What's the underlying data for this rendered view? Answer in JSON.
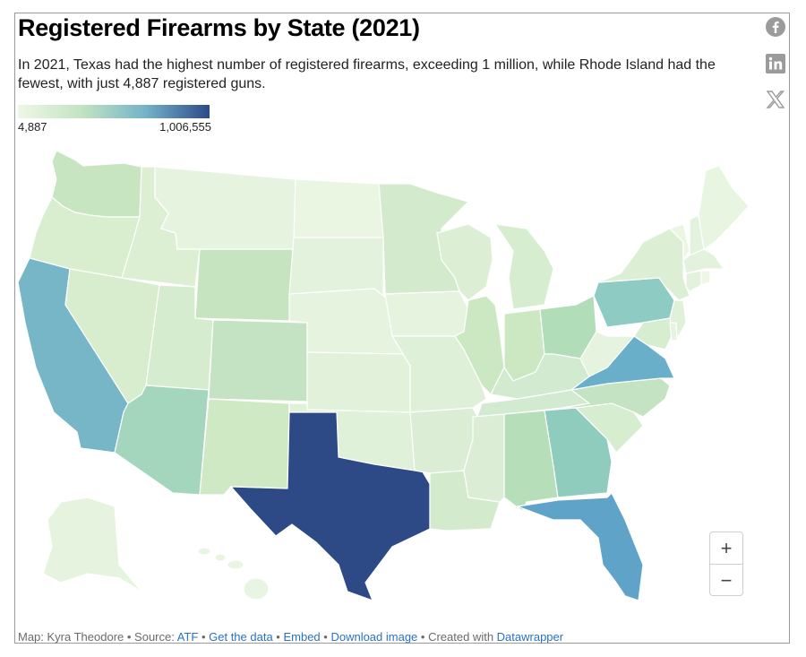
{
  "header": {
    "title": "Registered Firearms by State (2021)",
    "description": "In 2021, Texas had the highest number of registered firearms, exceeding 1 million, while Rhode Island had the fewest, with just 4,887 registered guns."
  },
  "legend": {
    "min_label": "4,887",
    "max_label": "1,006,555",
    "min": 4887,
    "max": 1006555,
    "colors": [
      "#eef7e6",
      "#c3e3c2",
      "#74b3c9",
      "#2d4a87"
    ]
  },
  "social": {
    "facebook_icon": "facebook-icon",
    "linkedin_icon": "linkedin-icon",
    "x_icon": "x-icon"
  },
  "map": {
    "state_colors": {
      "texas": "#2d4a87",
      "florida": "#5fa4c8",
      "california": "#77b6c7",
      "virginia": "#6aafca",
      "pennsylvania": "#8ecbc3",
      "georgia": "#90ccbd",
      "arizona": "#a3d6bd",
      "ohio": "#b2ddb9",
      "alabama": "#b6dfb9",
      "colorado": "#c3e3c2",
      "north_carolina": "#c3e3c2",
      "washington": "#c7e5c0",
      "wyoming": "#c5e4bf",
      "new_mexico": "#cfe9c5",
      "indiana": "#cce8c3",
      "illinois": "#cce8c3",
      "kentucky": "#d1ead0",
      "tennessee": "#d1ead0",
      "utah": "#d5ecce",
      "nevada": "#d7edcd",
      "oregon": "#d9eecf",
      "idaho": "#dcefd3",
      "montana": "#e6f4df",
      "north_dakota": "#eaf5e2",
      "south_dakota": "#e3f2dc",
      "nebraska": "#e6f4df",
      "kansas": "#e1f1da",
      "oklahoma": "#e0f1d9",
      "minnesota": "#d3ebcc",
      "iowa": "#e6f4df",
      "missouri": "#dff0d8",
      "arkansas": "#dbeed5",
      "louisiana": "#d3ebcc",
      "mississippi": "#dbeed5",
      "michigan": "#d6edd0",
      "wisconsin": "#dcefd5",
      "west_virginia": "#e6f4df",
      "south_carolina": "#d6edd0",
      "new_york": "#dcefd5",
      "maine": "#e8f5e1",
      "vermont": "#eaf5e2",
      "new_hampshire": "#e3f2dc",
      "massachusetts": "#e3f2dc",
      "connecticut": "#e3f2dc",
      "rhode_island": "#eef7e6",
      "new_jersey": "#e0f1d9",
      "maryland": "#d6edd0",
      "delaware": "#e6f4df",
      "alaska": "#e6f4df",
      "hawaii": "#e9f5e3"
    }
  },
  "zoom": {
    "plus": "+",
    "minus": "−"
  },
  "footer": {
    "credit": "Map: Kyra Theodore • Source: ",
    "source": "ATF",
    "sep1": " • ",
    "get_data": "Get the data",
    "sep2": " • ",
    "embed": "Embed",
    "sep3": "  • ",
    "download": "Download image",
    "created": " • Created with ",
    "datawrapper": "Datawrapper"
  }
}
